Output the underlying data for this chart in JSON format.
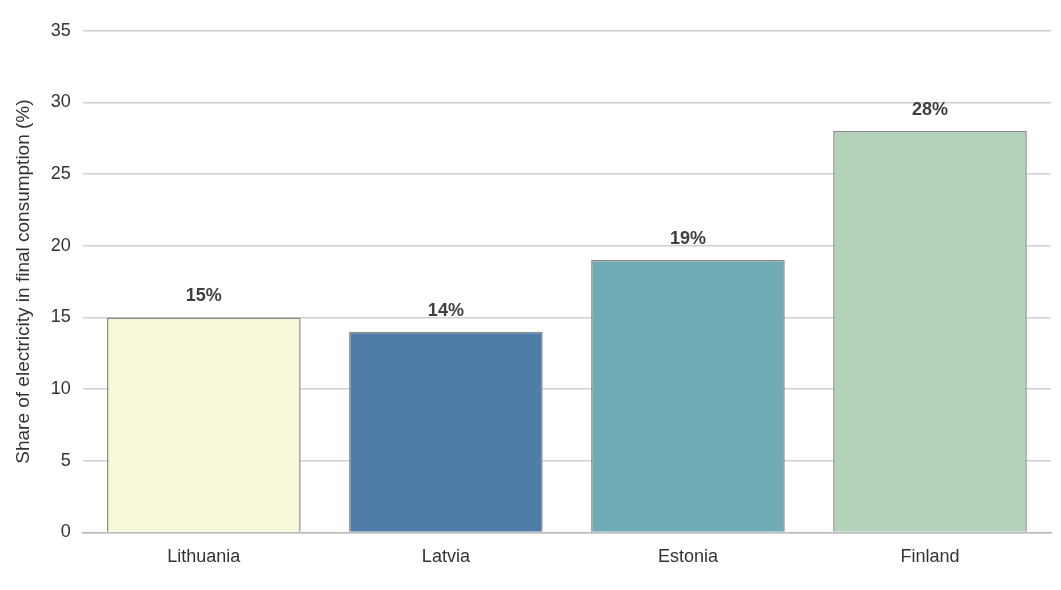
{
  "chart_data": {
    "type": "bar",
    "ylabel": "Share of electricity in final consumption (%)",
    "categories": [
      "Lithuania",
      "Latvia",
      "Estonia",
      "Finland"
    ],
    "values": [
      15,
      14,
      19,
      28
    ],
    "colors": [
      "#f8f8d8",
      "#4f7ca8",
      "#6eabb5",
      "#b3d3bb"
    ],
    "value_labels": [
      "15%",
      "14%",
      "19%",
      "28%"
    ],
    "ylim": [
      0,
      35
    ],
    "yticks": [
      0,
      5,
      10,
      15,
      20,
      25,
      30,
      35
    ],
    "grid": "y",
    "legend": false
  }
}
